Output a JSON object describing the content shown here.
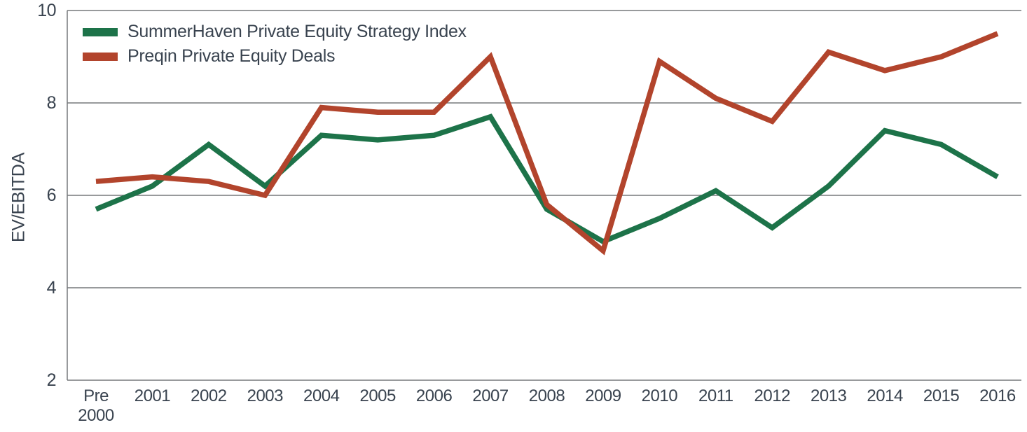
{
  "page": {
    "background": "#ffffff"
  },
  "chart_data": {
    "type": "line",
    "title": "",
    "xlabel": "",
    "ylabel": "EV/EBITDA",
    "ylim": [
      2,
      10
    ],
    "yticks": [
      2,
      4,
      6,
      8,
      10
    ],
    "grid": true,
    "legend_position": "top-left",
    "categories": [
      "Pre 2000",
      "2001",
      "2002",
      "2003",
      "2004",
      "2005",
      "2006",
      "2007",
      "2008",
      "2009",
      "2010",
      "2011",
      "2012",
      "2013",
      "2014",
      "2015",
      "2016"
    ],
    "series": [
      {
        "name": "SummerHaven Private Equity Strategy Index",
        "color": "#1d7349",
        "values": [
          5.7,
          6.2,
          7.1,
          6.2,
          7.3,
          7.2,
          7.3,
          7.7,
          5.7,
          5.0,
          5.5,
          6.1,
          5.3,
          6.2,
          7.4,
          7.1,
          6.4
        ]
      },
      {
        "name": "Preqin Private Equity Deals",
        "color": "#b2442c",
        "values": [
          6.3,
          6.4,
          6.3,
          6.0,
          7.9,
          7.8,
          7.8,
          9.0,
          5.8,
          4.8,
          8.9,
          8.1,
          7.6,
          9.1,
          8.7,
          9.0,
          9.5
        ]
      }
    ],
    "colors": {
      "grid": "#77797c",
      "text": "#39434f"
    }
  }
}
